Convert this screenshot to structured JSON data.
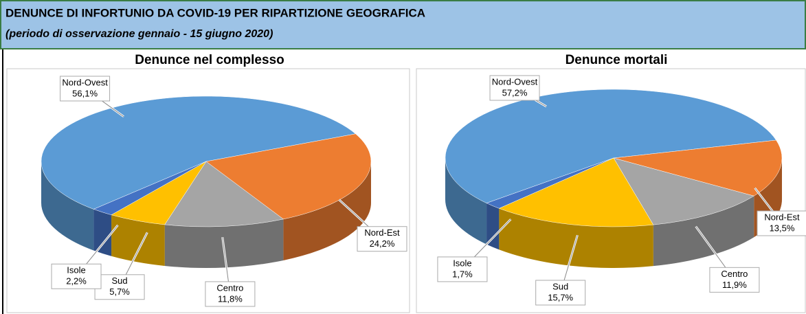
{
  "header": {
    "title": "DENUNCE DI INFORTUNIO DA COVID-19 PER RIPARTIZIONE GEOGRAFICA",
    "subtitle": "(periodo di osservazione gennaio - 15 giugno 2020)"
  },
  "chart_data": [
    {
      "type": "pie3d",
      "title": "Denunce nel complesso",
      "categories": [
        "Nord-Ovest",
        "Nord-Est",
        "Centro",
        "Sud",
        "Isole"
      ],
      "values": [
        56.1,
        24.2,
        11.8,
        5.7,
        2.2
      ],
      "value_labels": [
        "56,1%",
        "24,2%",
        "11,8%",
        "5,7%",
        "2,2%"
      ],
      "colors": [
        "#5b9bd5",
        "#ed7d31",
        "#a5a5a5",
        "#ffc000",
        "#4472c4"
      ]
    },
    {
      "type": "pie3d",
      "title": "Denunce mortali",
      "categories": [
        "Nord-Ovest",
        "Nord-Est",
        "Centro",
        "Sud",
        "Isole"
      ],
      "values": [
        57.2,
        13.5,
        11.9,
        15.7,
        1.7
      ],
      "value_labels": [
        "57,2%",
        "13,5%",
        "11,9%",
        "15,7%",
        "1,7%"
      ],
      "colors": [
        "#5b9bd5",
        "#ed7d31",
        "#a5a5a5",
        "#ffc000",
        "#4472c4"
      ]
    }
  ]
}
